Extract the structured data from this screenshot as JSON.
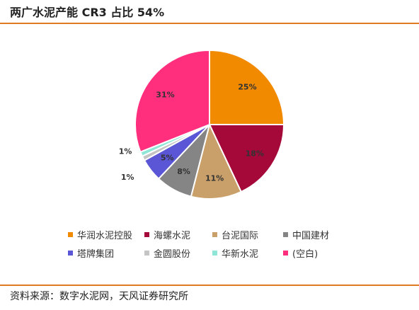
{
  "title": "两广水泥产能 CR3 占比 54%",
  "source": "资料来源：数字水泥网，天风证券研究所",
  "chart_data": {
    "type": "pie",
    "title": "两广水泥产能 CR3 占比 54%",
    "labels": [
      "华润水泥控股",
      "海螺水泥",
      "台泥国际",
      "中国建材",
      "塔牌集团",
      "金圆股份",
      "华新水泥",
      "(空白)"
    ],
    "values": [
      25,
      18,
      11,
      8,
      5,
      1,
      1,
      31
    ],
    "value_labels": [
      "25%",
      "18%",
      "11%",
      "8%",
      "5%",
      "1%",
      "1%",
      "31%"
    ],
    "colors": [
      "#f28a00",
      "#a5093a",
      "#c9a06a",
      "#858585",
      "#5b56d6",
      "#c4c4c4",
      "#8fe6d6",
      "#ff2f7e"
    ],
    "start": "12 o'clock, clockwise",
    "legend_position": "bottom"
  }
}
